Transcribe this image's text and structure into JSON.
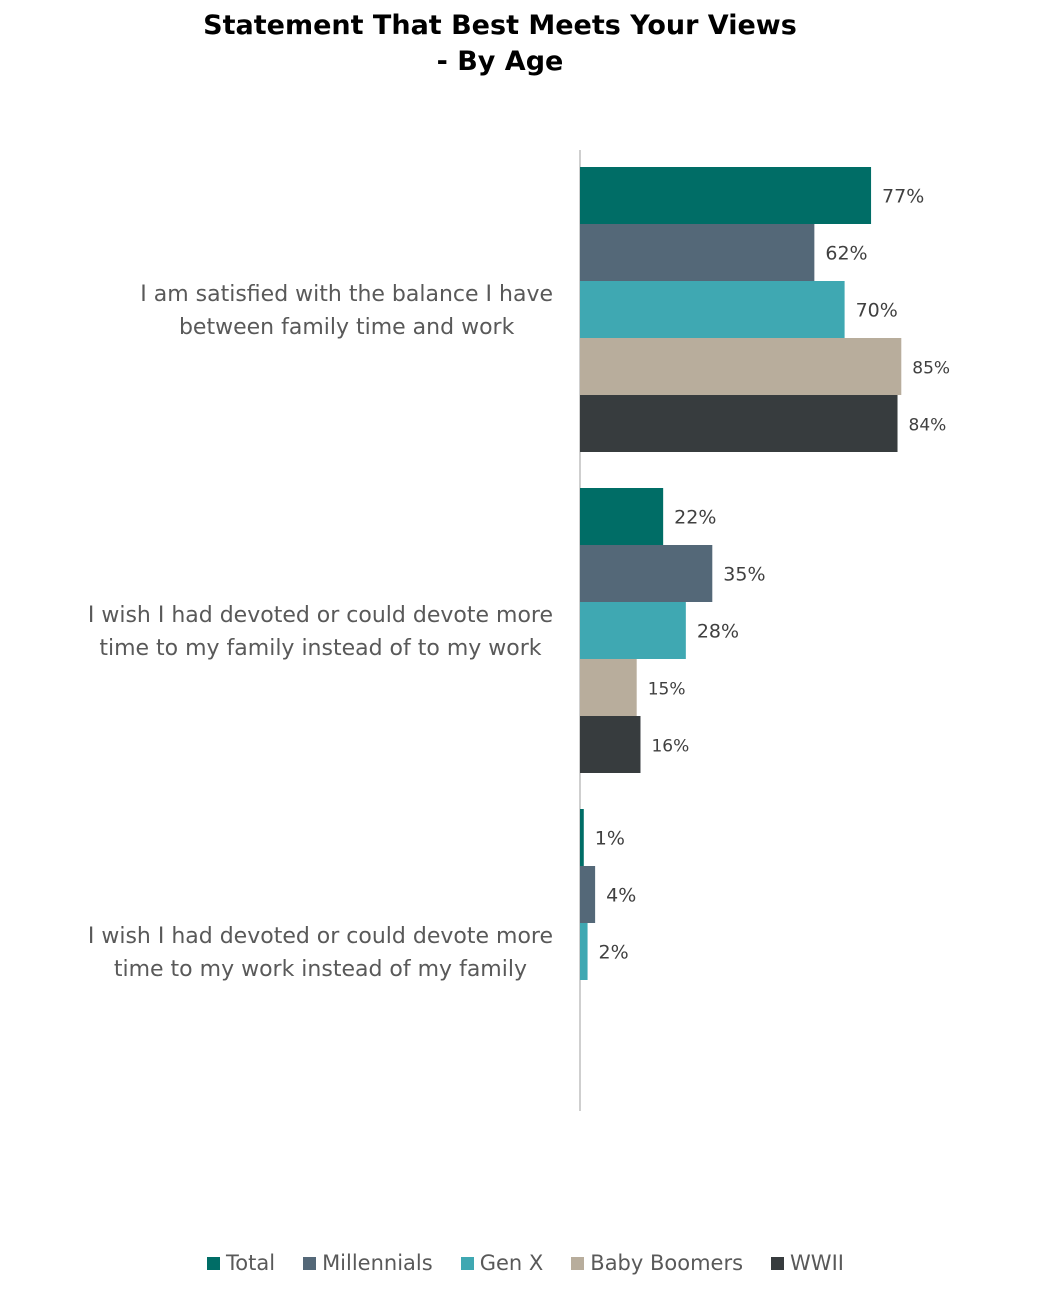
{
  "chart_data": {
    "type": "bar",
    "orientation": "horizontal",
    "title": "Statement That Best Meets Your Views - By Age",
    "title_lines": [
      "Statement That Best Meets Your Views",
      "- By Age"
    ],
    "categories": [
      [
        "I am satisfied with the balance I have",
        "between family time and work"
      ],
      [
        "I wish I had devoted or could devote more",
        "time to my family instead of to my work"
      ],
      [
        "I wish I had devoted or could devote more",
        "time to my work instead of my family"
      ]
    ],
    "series": [
      {
        "name": "Total",
        "color": "#006d66",
        "values": [
          77,
          22,
          1
        ]
      },
      {
        "name": "Millennials",
        "color": "#546878",
        "values": [
          62,
          35,
          4
        ]
      },
      {
        "name": "Gen X",
        "color": "#3fa8b2",
        "values": [
          70,
          28,
          2
        ]
      },
      {
        "name": "Baby Boomers",
        "color": "#b8ad9c",
        "values": [
          85,
          15,
          null
        ]
      },
      {
        "name": "WWII",
        "color": "#373c3e",
        "values": [
          84,
          16,
          null
        ]
      }
    ],
    "data_labels": [
      [
        "77%",
        "22%",
        "1%"
      ],
      [
        "62%",
        "35%",
        "4%"
      ],
      [
        "70%",
        "28%",
        "2%"
      ],
      [
        "85%",
        "15%",
        ""
      ],
      [
        "84%",
        "16%",
        ""
      ]
    ],
    "value_unit": "%",
    "xlim": [
      0,
      100
    ],
    "grid": false,
    "legend_position": "bottom"
  }
}
